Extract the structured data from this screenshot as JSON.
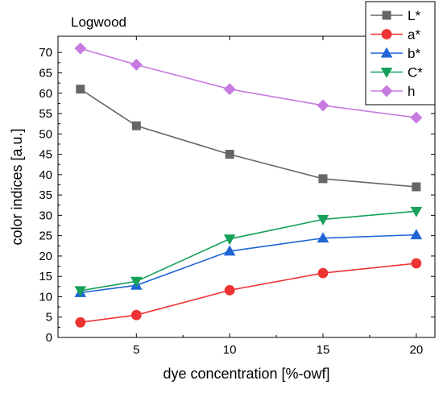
{
  "chart_data": {
    "type": "line",
    "title": "Logwood",
    "xlabel": "dye concentration [%-owf]",
    "ylabel": "color indices [a.u.]",
    "x": [
      2,
      5,
      10,
      15,
      20
    ],
    "xticks": [
      "5",
      "10",
      "15",
      "20"
    ],
    "xtick_values": [
      5,
      10,
      15,
      20
    ],
    "yticks": [
      "0",
      "5",
      "10",
      "15",
      "20",
      "25",
      "30",
      "35",
      "40",
      "45",
      "50",
      "55",
      "60",
      "65",
      "70"
    ],
    "ytick_values": [
      0,
      5,
      10,
      15,
      20,
      25,
      30,
      35,
      40,
      45,
      50,
      55,
      60,
      65,
      70
    ],
    "xlim": [
      0.8,
      21
    ],
    "ylim": [
      0,
      74
    ],
    "legend_position": "top-right",
    "series": [
      {
        "name": "L*",
        "values": [
          61,
          52,
          45,
          39,
          37
        ],
        "color": "#666666",
        "marker": "square"
      },
      {
        "name": "a*",
        "values": [
          3.7,
          5.5,
          11.6,
          15.8,
          18.2
        ],
        "color": "#ee3333",
        "marker": "circle"
      },
      {
        "name": "b*",
        "values": [
          11,
          12.8,
          21.2,
          24.4,
          25.2
        ],
        "color": "#1f65d6",
        "marker": "triangle-up"
      },
      {
        "name": "C*",
        "values": [
          11.5,
          13.8,
          24.2,
          29,
          31
        ],
        "color": "#16a05a",
        "marker": "triangle-down"
      },
      {
        "name": "h",
        "values": [
          71,
          67,
          61,
          57,
          54
        ],
        "color": "#c77be0",
        "marker": "diamond"
      }
    ]
  }
}
